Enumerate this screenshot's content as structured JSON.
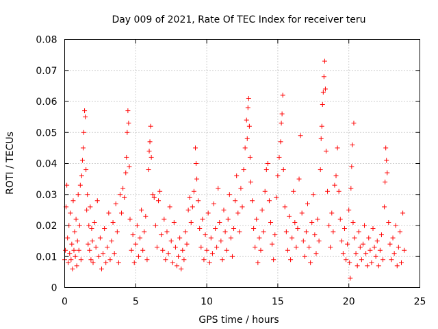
{
  "chart_data": {
    "type": "scatter",
    "title": "Day 009 of 2021, Rate Of TEC Index for receiver teru",
    "xlabel": "GPS time / hours",
    "ylabel": "ROTI / TECUs",
    "xlim": [
      0,
      25
    ],
    "ylim": [
      0,
      0.08
    ],
    "x_ticks": [
      0,
      5,
      10,
      15,
      20,
      25
    ],
    "x_tick_labels": [
      "0",
      "5",
      "10",
      "15",
      "20",
      "25"
    ],
    "y_ticks": [
      0,
      0.01,
      0.02,
      0.03,
      0.04,
      0.05,
      0.06,
      0.07,
      0.08
    ],
    "y_tick_labels": [
      "0",
      "0.01",
      "0.02",
      "0.03",
      "0.04",
      "0.05",
      "0.06",
      "0.07",
      "0.08"
    ],
    "grid": true,
    "marker": "+",
    "color": "#ff0000",
    "series": [
      {
        "values": [
          [
            0.0,
            0.009
          ],
          [
            0.05,
            0.012
          ],
          [
            0.1,
            0.026
          ],
          [
            0.15,
            0.033
          ],
          [
            0.2,
            0.016
          ],
          [
            0.25,
            0.008
          ],
          [
            0.3,
            0.02
          ],
          [
            0.35,
            0.011
          ],
          [
            0.4,
            0.024
          ],
          [
            0.45,
            0.009
          ],
          [
            0.5,
            0.014
          ],
          [
            0.55,
            0.006
          ],
          [
            0.6,
            0.028
          ],
          [
            0.65,
            0.012
          ],
          [
            0.7,
            0.018
          ],
          [
            0.75,
            0.01
          ],
          [
            0.8,
            0.022
          ],
          [
            0.85,
            0.007
          ],
          [
            0.9,
            0.015
          ],
          [
            0.95,
            0.03
          ],
          [
            1.0,
            0.012
          ],
          [
            1.05,
            0.02
          ],
          [
            1.1,
            0.033
          ],
          [
            1.15,
            0.009
          ],
          [
            1.2,
            0.036
          ],
          [
            1.25,
            0.041
          ],
          [
            1.3,
            0.045
          ],
          [
            1.35,
            0.05
          ],
          [
            1.4,
            0.057
          ],
          [
            1.45,
            0.055
          ],
          [
            1.5,
            0.038
          ],
          [
            1.55,
            0.025
          ],
          [
            1.6,
            0.03
          ],
          [
            1.65,
            0.014
          ],
          [
            1.7,
            0.02
          ],
          [
            1.75,
            0.012
          ],
          [
            1.8,
            0.026
          ],
          [
            1.85,
            0.009
          ],
          [
            1.9,
            0.019
          ],
          [
            1.95,
            0.015
          ],
          [
            2.0,
            0.008
          ],
          [
            2.1,
            0.021
          ],
          [
            2.2,
            0.013
          ],
          [
            2.3,
            0.028
          ],
          [
            2.4,
            0.01
          ],
          [
            2.5,
            0.016
          ],
          [
            2.6,
            0.006
          ],
          [
            2.7,
            0.011
          ],
          [
            2.8,
            0.019
          ],
          [
            2.9,
            0.008
          ],
          [
            3.0,
            0.013
          ],
          [
            3.1,
            0.024
          ],
          [
            3.2,
            0.009
          ],
          [
            3.3,
            0.015
          ],
          [
            3.4,
            0.021
          ],
          [
            3.5,
            0.011
          ],
          [
            3.6,
            0.027
          ],
          [
            3.7,
            0.018
          ],
          [
            3.8,
            0.008
          ],
          [
            3.9,
            0.03
          ],
          [
            4.0,
            0.024
          ],
          [
            4.1,
            0.032
          ],
          [
            4.2,
            0.029
          ],
          [
            4.3,
            0.037
          ],
          [
            4.35,
            0.042
          ],
          [
            4.4,
            0.05
          ],
          [
            4.45,
            0.057
          ],
          [
            4.5,
            0.053
          ],
          [
            4.55,
            0.039
          ],
          [
            4.6,
            0.022
          ],
          [
            4.7,
            0.012
          ],
          [
            4.8,
            0.017
          ],
          [
            4.9,
            0.008
          ],
          [
            5.0,
            0.014
          ],
          [
            5.1,
            0.02
          ],
          [
            5.2,
            0.01
          ],
          [
            5.3,
            0.016
          ],
          [
            5.4,
            0.025
          ],
          [
            5.5,
            0.012
          ],
          [
            5.6,
            0.018
          ],
          [
            5.7,
            0.023
          ],
          [
            5.8,
            0.009
          ],
          [
            5.9,
            0.038
          ],
          [
            5.95,
            0.044
          ],
          [
            6.0,
            0.047
          ],
          [
            6.05,
            0.052
          ],
          [
            6.1,
            0.042
          ],
          [
            6.2,
            0.03
          ],
          [
            6.3,
            0.029
          ],
          [
            6.4,
            0.02
          ],
          [
            6.5,
            0.013
          ],
          [
            6.6,
            0.028
          ],
          [
            6.7,
            0.031
          ],
          [
            6.8,
            0.017
          ],
          [
            6.9,
            0.012
          ],
          [
            7.0,
            0.022
          ],
          [
            7.1,
            0.009
          ],
          [
            7.2,
            0.018
          ],
          [
            7.3,
            0.011
          ],
          [
            7.4,
            0.026
          ],
          [
            7.5,
            0.015
          ],
          [
            7.6,
            0.008
          ],
          [
            7.7,
            0.021
          ],
          [
            7.8,
            0.013
          ],
          [
            7.9,
            0.007
          ],
          [
            8.0,
            0.01
          ],
          [
            8.1,
            0.016
          ],
          [
            8.2,
            0.006
          ],
          [
            8.3,
            0.012
          ],
          [
            8.4,
            0.009
          ],
          [
            8.5,
            0.018
          ],
          [
            8.6,
            0.014
          ],
          [
            8.7,
            0.025
          ],
          [
            8.8,
            0.029
          ],
          [
            8.9,
            0.021
          ],
          [
            9.0,
            0.026
          ],
          [
            9.1,
            0.031
          ],
          [
            9.2,
            0.045
          ],
          [
            9.25,
            0.04
          ],
          [
            9.3,
            0.035
          ],
          [
            9.4,
            0.028
          ],
          [
            9.5,
            0.019
          ],
          [
            9.6,
            0.013
          ],
          [
            9.7,
            0.022
          ],
          [
            9.8,
            0.009
          ],
          [
            9.9,
            0.017
          ],
          [
            10.0,
            0.012
          ],
          [
            10.1,
            0.024
          ],
          [
            10.2,
            0.008
          ],
          [
            10.3,
            0.016
          ],
          [
            10.4,
            0.011
          ],
          [
            10.5,
            0.027
          ],
          [
            10.6,
            0.019
          ],
          [
            10.7,
            0.013
          ],
          [
            10.8,
            0.032
          ],
          [
            10.9,
            0.021
          ],
          [
            11.0,
            0.015
          ],
          [
            11.1,
            0.009
          ],
          [
            11.2,
            0.025
          ],
          [
            11.3,
            0.018
          ],
          [
            11.4,
            0.012
          ],
          [
            11.5,
            0.022
          ],
          [
            11.6,
            0.03
          ],
          [
            11.7,
            0.016
          ],
          [
            11.8,
            0.01
          ],
          [
            11.9,
            0.019
          ],
          [
            12.0,
            0.028
          ],
          [
            12.1,
            0.036
          ],
          [
            12.2,
            0.024
          ],
          [
            12.3,
            0.018
          ],
          [
            12.4,
            0.032
          ],
          [
            12.5,
            0.026
          ],
          [
            12.6,
            0.038
          ],
          [
            12.7,
            0.045
          ],
          [
            12.8,
            0.054
          ],
          [
            12.85,
            0.048
          ],
          [
            12.9,
            0.058
          ],
          [
            12.95,
            0.061
          ],
          [
            13.0,
            0.052
          ],
          [
            13.05,
            0.042
          ],
          [
            13.1,
            0.034
          ],
          [
            13.2,
            0.028
          ],
          [
            13.3,
            0.019
          ],
          [
            13.4,
            0.013
          ],
          [
            13.5,
            0.022
          ],
          [
            13.6,
            0.008
          ],
          [
            13.7,
            0.016
          ],
          [
            13.8,
            0.012
          ],
          [
            13.9,
            0.025
          ],
          [
            14.0,
            0.018
          ],
          [
            14.1,
            0.031
          ],
          [
            14.2,
            0.038
          ],
          [
            14.3,
            0.04
          ],
          [
            14.4,
            0.028
          ],
          [
            14.5,
            0.021
          ],
          [
            14.6,
            0.014
          ],
          [
            14.7,
            0.009
          ],
          [
            14.8,
            0.017
          ],
          [
            14.9,
            0.029
          ],
          [
            15.0,
            0.036
          ],
          [
            15.1,
            0.042
          ],
          [
            15.2,
            0.047
          ],
          [
            15.25,
            0.053
          ],
          [
            15.3,
            0.056
          ],
          [
            15.35,
            0.062
          ],
          [
            15.4,
            0.038
          ],
          [
            15.5,
            0.026
          ],
          [
            15.6,
            0.018
          ],
          [
            15.7,
            0.012
          ],
          [
            15.8,
            0.023
          ],
          [
            15.9,
            0.009
          ],
          [
            16.0,
            0.016
          ],
          [
            16.1,
            0.031
          ],
          [
            16.2,
            0.021
          ],
          [
            16.3,
            0.013
          ],
          [
            16.4,
            0.019
          ],
          [
            16.5,
            0.035
          ],
          [
            16.6,
            0.049
          ],
          [
            16.7,
            0.024
          ],
          [
            16.8,
            0.015
          ],
          [
            16.9,
            0.01
          ],
          [
            17.0,
            0.018
          ],
          [
            17.1,
            0.027
          ],
          [
            17.2,
            0.013
          ],
          [
            17.3,
            0.008
          ],
          [
            17.4,
            0.021
          ],
          [
            17.5,
            0.03
          ],
          [
            17.6,
            0.017
          ],
          [
            17.7,
            0.011
          ],
          [
            17.8,
            0.022
          ],
          [
            17.9,
            0.015
          ],
          [
            18.0,
            0.038
          ],
          [
            18.05,
            0.048
          ],
          [
            18.1,
            0.052
          ],
          [
            18.15,
            0.059
          ],
          [
            18.2,
            0.063
          ],
          [
            18.25,
            0.068
          ],
          [
            18.3,
            0.073
          ],
          [
            18.35,
            0.064
          ],
          [
            18.4,
            0.044
          ],
          [
            18.5,
            0.031
          ],
          [
            18.6,
            0.02
          ],
          [
            18.7,
            0.013
          ],
          [
            18.8,
            0.024
          ],
          [
            18.9,
            0.018
          ],
          [
            19.0,
            0.033
          ],
          [
            19.1,
            0.036
          ],
          [
            19.2,
            0.045
          ],
          [
            19.3,
            0.031
          ],
          [
            19.4,
            0.022
          ],
          [
            19.5,
            0.015
          ],
          [
            19.6,
            0.011
          ],
          [
            19.7,
            0.019
          ],
          [
            19.8,
            0.009
          ],
          [
            19.9,
            0.014
          ],
          [
            20.0,
            0.025
          ],
          [
            20.05,
            0.008
          ],
          [
            20.1,
            0.003
          ],
          [
            20.15,
            0.032
          ],
          [
            20.2,
            0.039
          ],
          [
            20.25,
            0.046
          ],
          [
            20.3,
            0.021
          ],
          [
            20.35,
            0.053
          ],
          [
            20.4,
            0.016
          ],
          [
            20.5,
            0.011
          ],
          [
            20.6,
            0.007
          ],
          [
            20.7,
            0.018
          ],
          [
            20.8,
            0.013
          ],
          [
            20.9,
            0.009
          ],
          [
            21.0,
            0.014
          ],
          [
            21.1,
            0.02
          ],
          [
            21.2,
            0.011
          ],
          [
            21.3,
            0.007
          ],
          [
            21.4,
            0.016
          ],
          [
            21.5,
            0.012
          ],
          [
            21.6,
            0.008
          ],
          [
            21.7,
            0.019
          ],
          [
            21.8,
            0.013
          ],
          [
            21.9,
            0.01
          ],
          [
            22.0,
            0.015
          ],
          [
            22.1,
            0.007
          ],
          [
            22.2,
            0.012
          ],
          [
            22.3,
            0.017
          ],
          [
            22.4,
            0.009
          ],
          [
            22.5,
            0.026
          ],
          [
            22.55,
            0.034
          ],
          [
            22.6,
            0.045
          ],
          [
            22.65,
            0.041
          ],
          [
            22.7,
            0.037
          ],
          [
            22.8,
            0.021
          ],
          [
            22.9,
            0.014
          ],
          [
            23.0,
            0.009
          ],
          [
            23.1,
            0.016
          ],
          [
            23.2,
            0.011
          ],
          [
            23.3,
            0.02
          ],
          [
            23.4,
            0.007
          ],
          [
            23.5,
            0.013
          ],
          [
            23.6,
            0.018
          ],
          [
            23.7,
            0.008
          ],
          [
            23.8,
            0.024
          ],
          [
            23.9,
            0.012
          ]
        ]
      }
    ]
  }
}
